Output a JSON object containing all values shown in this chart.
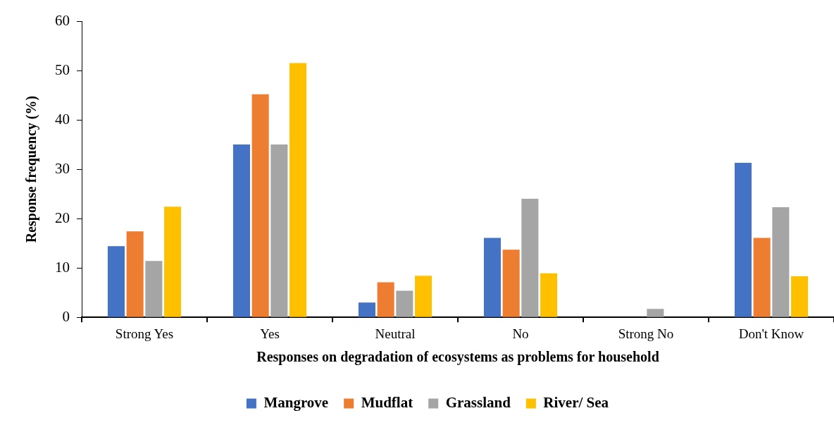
{
  "chart_data": {
    "type": "bar",
    "xlabel": "Responses on degradation of ecosystems as problems for household",
    "ylabel": "Response frequency (%)",
    "categories": [
      "Strong Yes",
      "Yes",
      "Neutral",
      "No",
      "Strong No",
      "Don't Know"
    ],
    "series": [
      {
        "name": "Mangrove",
        "color": "#4472c4",
        "values": [
          14.4,
          35.0,
          3.0,
          16.1,
          0,
          31.3
        ]
      },
      {
        "name": "Mudflat",
        "color": "#ed7d31",
        "values": [
          17.4,
          45.2,
          7.1,
          13.7,
          0,
          16.1
        ]
      },
      {
        "name": "Grassland",
        "color": "#a5a5a5",
        "values": [
          11.4,
          35.0,
          5.4,
          24.0,
          1.7,
          22.3
        ]
      },
      {
        "name": "River/ Sea",
        "color": "#ffc000",
        "values": [
          22.4,
          51.5,
          8.4,
          8.9,
          0,
          8.3
        ]
      }
    ],
    "ylim": [
      0,
      60
    ],
    "yticks": [
      0,
      10,
      20,
      30,
      40,
      50,
      60
    ],
    "grid": false,
    "legend": "bottom"
  }
}
